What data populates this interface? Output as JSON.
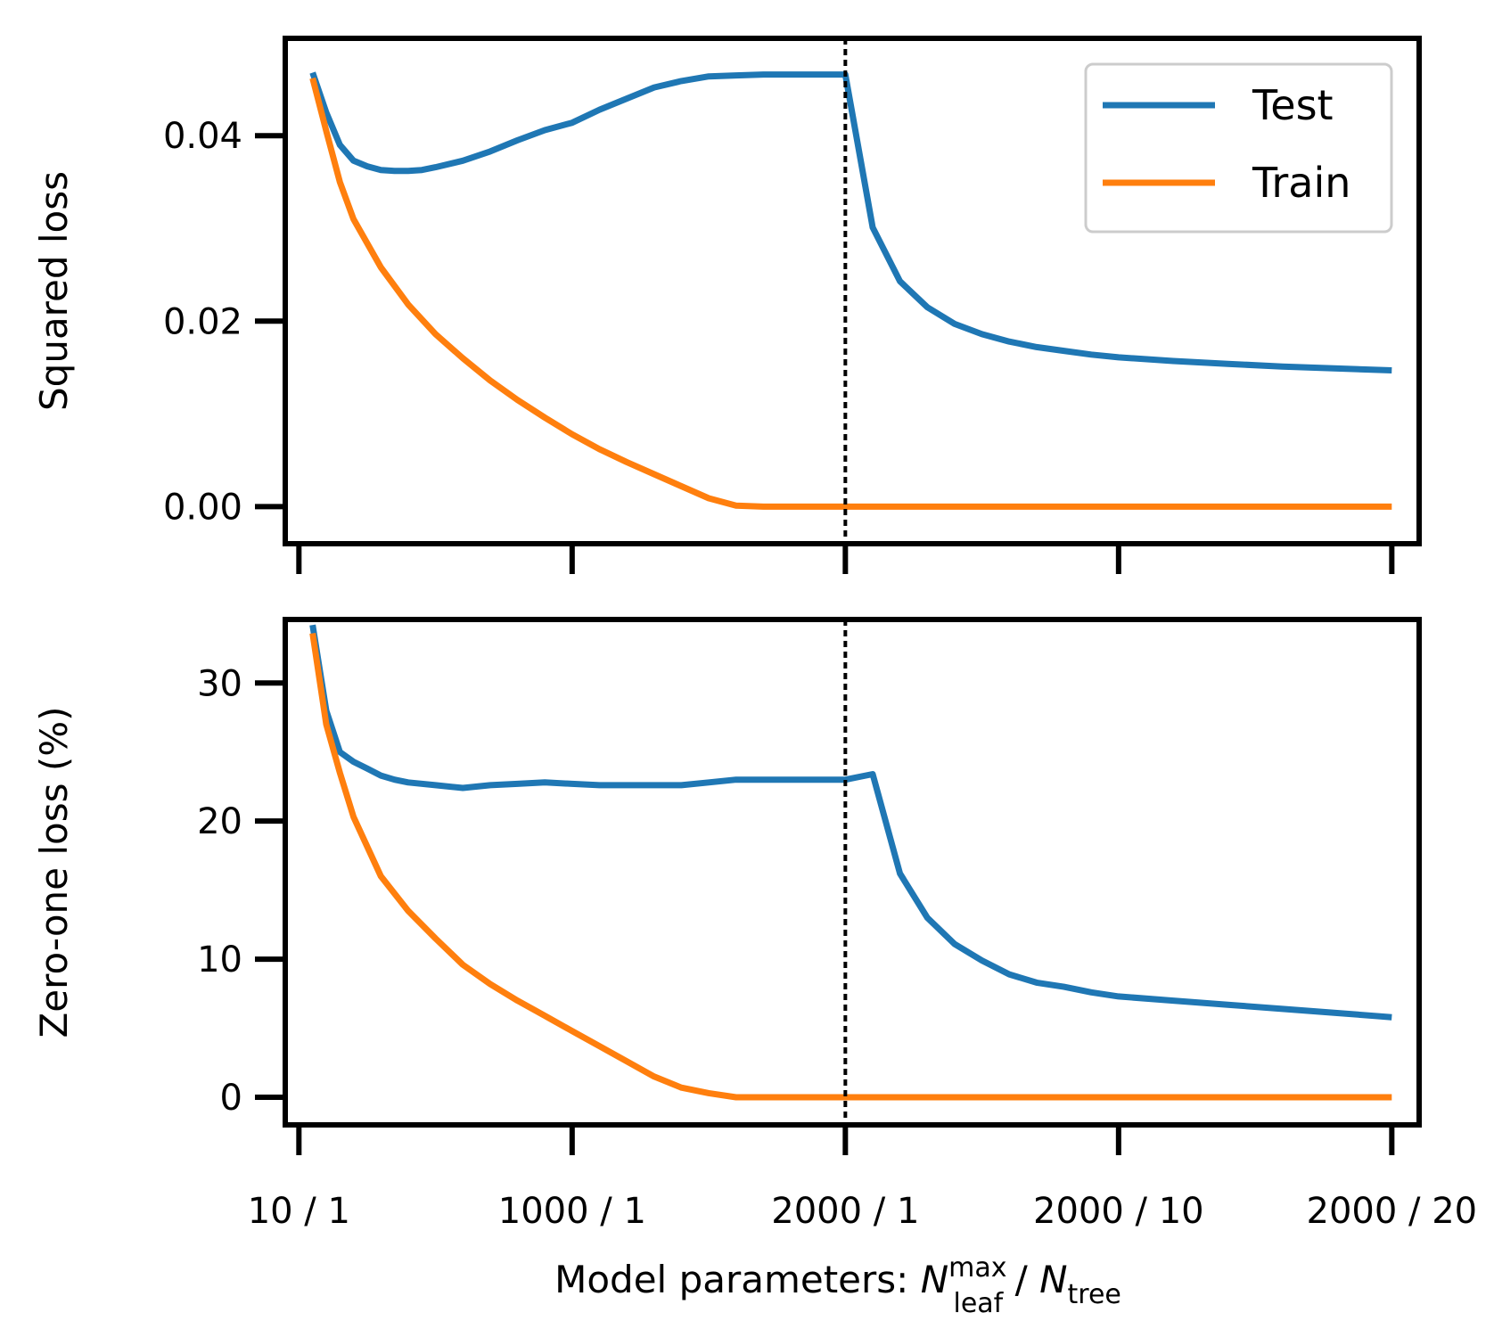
{
  "chart_data": [
    {
      "type": "line",
      "ylabel": "Squared loss",
      "ylim": [
        -0.004,
        0.0505
      ],
      "yticks": [
        0.0,
        0.02,
        0.04
      ],
      "ytick_labels": [
        "0.00",
        "0.02",
        "0.04"
      ],
      "xlim": [
        -0.05,
        4.1
      ],
      "vline": 2.0,
      "legend": {
        "placement": "top-right",
        "entries": [
          "Test",
          "Train"
        ]
      },
      "series": [
        {
          "name": "Test",
          "color": "#1f77b4",
          "x": [
            0.05,
            0.1,
            0.15,
            0.2,
            0.25,
            0.3,
            0.35,
            0.4,
            0.45,
            0.5,
            0.6,
            0.7,
            0.8,
            0.9,
            1.0,
            1.1,
            1.2,
            1.3,
            1.4,
            1.5,
            1.6,
            1.7,
            1.8,
            1.9,
            2.0,
            2.1,
            2.2,
            2.3,
            2.4,
            2.5,
            2.6,
            2.7,
            2.8,
            2.9,
            3.0,
            3.2,
            3.4,
            3.6,
            3.8,
            4.0
          ],
          "values": [
            0.0468,
            0.0425,
            0.039,
            0.0373,
            0.0367,
            0.0363,
            0.0362,
            0.0362,
            0.0363,
            0.0366,
            0.0373,
            0.0383,
            0.0395,
            0.0406,
            0.0414,
            0.0428,
            0.044,
            0.0452,
            0.0459,
            0.0464,
            0.0465,
            0.0466,
            0.0466,
            0.0466,
            0.0466,
            0.0301,
            0.0243,
            0.0215,
            0.0197,
            0.0186,
            0.0178,
            0.0172,
            0.0168,
            0.0164,
            0.0161,
            0.0157,
            0.0154,
            0.0151,
            0.0149,
            0.0147
          ]
        },
        {
          "name": "Train",
          "color": "#ff7f0e",
          "x": [
            0.05,
            0.1,
            0.15,
            0.2,
            0.3,
            0.4,
            0.5,
            0.6,
            0.7,
            0.8,
            0.9,
            1.0,
            1.1,
            1.2,
            1.3,
            1.4,
            1.5,
            1.6,
            1.7,
            1.8,
            1.9,
            2.0,
            2.5,
            3.0,
            3.5,
            4.0
          ],
          "values": [
            0.0462,
            0.0405,
            0.035,
            0.031,
            0.0258,
            0.0218,
            0.0186,
            0.016,
            0.0136,
            0.0115,
            0.0096,
            0.0078,
            0.0062,
            0.0048,
            0.0035,
            0.0022,
            0.0009,
            0.0001,
            0.0,
            0.0,
            0.0,
            0.0,
            0.0,
            0.0,
            0.0,
            0.0
          ]
        }
      ]
    },
    {
      "type": "line",
      "ylabel": "Zero-one loss (%)",
      "ylim": [
        -2.0,
        34.6
      ],
      "yticks": [
        0,
        10,
        20,
        30
      ],
      "ytick_labels": [
        "0",
        "10",
        "20",
        "30"
      ],
      "xlim": [
        -0.05,
        4.1
      ],
      "vline": 2.0,
      "xticks": [
        0,
        1,
        2,
        3,
        4
      ],
      "xtick_labels": [
        "10 / 1",
        "1000 / 1",
        "2000 / 1",
        "2000 / 10",
        "2000 / 20"
      ],
      "xlabel": {
        "prefix": "Model parameters: ",
        "var1": "N",
        "var1_sup": "max",
        "var1_sub": "leaf",
        "sep": " / ",
        "var2": "N",
        "var2_sub": "tree"
      },
      "series": [
        {
          "name": "Test",
          "color": "#1f77b4",
          "x": [
            0.05,
            0.1,
            0.15,
            0.2,
            0.25,
            0.3,
            0.35,
            0.4,
            0.5,
            0.6,
            0.7,
            0.8,
            0.9,
            1.0,
            1.1,
            1.2,
            1.3,
            1.4,
            1.5,
            1.6,
            1.7,
            1.8,
            1.9,
            2.0,
            2.1,
            2.2,
            2.3,
            2.4,
            2.5,
            2.6,
            2.7,
            2.8,
            2.9,
            3.0,
            3.2,
            3.4,
            3.6,
            3.8,
            4.0
          ],
          "values": [
            34.2,
            28.0,
            25.0,
            24.3,
            23.8,
            23.3,
            23.0,
            22.8,
            22.6,
            22.4,
            22.6,
            22.7,
            22.8,
            22.7,
            22.6,
            22.6,
            22.6,
            22.6,
            22.8,
            23.0,
            23.0,
            23.0,
            23.0,
            23.0,
            23.4,
            16.2,
            13.0,
            11.1,
            9.9,
            8.9,
            8.3,
            8.0,
            7.6,
            7.3,
            7.0,
            6.7,
            6.4,
            6.1,
            5.8
          ]
        },
        {
          "name": "Train",
          "color": "#ff7f0e",
          "x": [
            0.05,
            0.1,
            0.15,
            0.2,
            0.3,
            0.4,
            0.5,
            0.6,
            0.7,
            0.8,
            0.9,
            1.0,
            1.1,
            1.2,
            1.3,
            1.4,
            1.5,
            1.6,
            1.7,
            1.8,
            1.9,
            2.0,
            2.5,
            3.0,
            3.5,
            4.0
          ],
          "values": [
            33.6,
            27.0,
            23.5,
            20.3,
            16.0,
            13.5,
            11.5,
            9.6,
            8.2,
            7.0,
            5.9,
            4.8,
            3.7,
            2.6,
            1.5,
            0.7,
            0.3,
            0.0,
            0.0,
            0.0,
            0.0,
            0.0,
            0.0,
            0.0,
            0.0,
            0.0
          ]
        }
      ]
    }
  ]
}
